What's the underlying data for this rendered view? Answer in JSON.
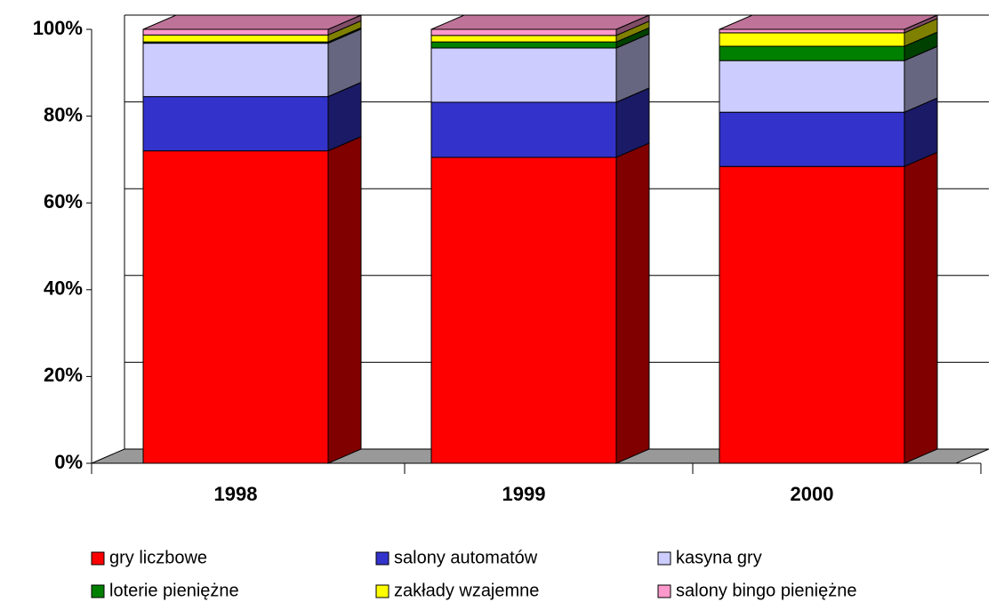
{
  "chart_data": {
    "type": "bar",
    "stacked": true,
    "categories": [
      "1998",
      "1999",
      "2000"
    ],
    "series": [
      {
        "name": "gry liczbowe",
        "color": "#ff0000",
        "values": [
          72,
          70.5,
          68.4
        ]
      },
      {
        "name": "salony automatów",
        "color": "#3333cc",
        "values": [
          12.5,
          12.7,
          12.5
        ]
      },
      {
        "name": "kasyna gry",
        "color": "#ccccff",
        "values": [
          12.3,
          12.5,
          11.9
        ]
      },
      {
        "name": "loterie pieniężne",
        "color": "#008000",
        "values": [
          0.3,
          1.4,
          3.3
        ]
      },
      {
        "name": "zakłady wzajemne",
        "color": "#ffff00",
        "values": [
          1.6,
          1.5,
          3.1
        ]
      },
      {
        "name": "salony bingo pieniężne",
        "color": "#ff99cc",
        "values": [
          1.3,
          1.4,
          0.8
        ]
      }
    ],
    "ylim": [
      0,
      100
    ],
    "yticks": [
      {
        "value": 0,
        "label": "0%"
      },
      {
        "value": 20,
        "label": "20%"
      },
      {
        "value": 40,
        "label": "40%"
      },
      {
        "value": 60,
        "label": "60%"
      },
      {
        "value": 80,
        "label": "80%"
      },
      {
        "value": 100,
        "label": "100%"
      }
    ],
    "grid": true,
    "legend": "bottom"
  }
}
